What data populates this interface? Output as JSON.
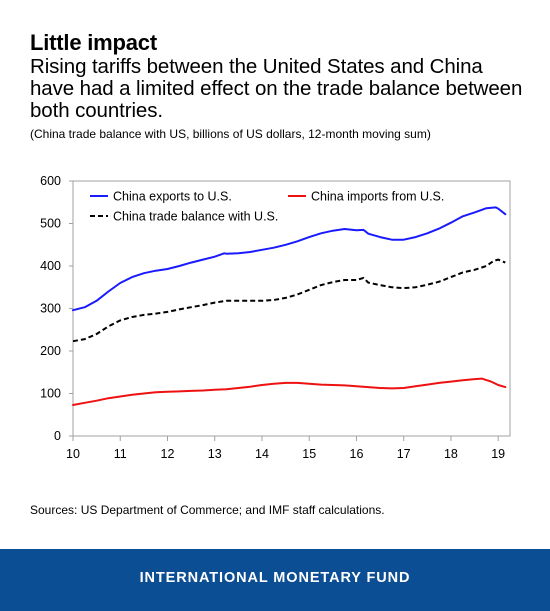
{
  "header": {
    "title": "Little impact",
    "subtitle": "Rising tariffs between the United States and China have had a limited effect on the trade balance between both countries.",
    "note": "(China trade balance with US, billions of US dollars, 12-month moving sum)"
  },
  "source": "Sources: US Department of Commerce; and IMF staff calculations.",
  "footer": {
    "org": "INTERNATIONAL MONETARY FUND",
    "color": "#0c4e94"
  },
  "chart_data": {
    "type": "line",
    "xlim": [
      10,
      19.25
    ],
    "ylim": [
      0,
      600
    ],
    "x_ticks": [
      "10",
      "11",
      "12",
      "13",
      "14",
      "15",
      "16",
      "17",
      "18",
      "19"
    ],
    "y_ticks": [
      "0",
      "100",
      "200",
      "300",
      "400",
      "500",
      "600"
    ],
    "grid": false,
    "legend_position": "top-left",
    "series": [
      {
        "name": "China exports to U.S.",
        "color": "#1a1aff",
        "dash": "solid",
        "points": [
          [
            10.0,
            296
          ],
          [
            10.25,
            303
          ],
          [
            10.5,
            318
          ],
          [
            10.75,
            340
          ],
          [
            11.0,
            360
          ],
          [
            11.25,
            374
          ],
          [
            11.5,
            383
          ],
          [
            11.75,
            389
          ],
          [
            12.0,
            393
          ],
          [
            12.25,
            400
          ],
          [
            12.5,
            408
          ],
          [
            12.75,
            415
          ],
          [
            13.0,
            422
          ],
          [
            13.2,
            430
          ],
          [
            13.25,
            429
          ],
          [
            13.5,
            430
          ],
          [
            13.75,
            433
          ],
          [
            14.0,
            438
          ],
          [
            14.25,
            443
          ],
          [
            14.5,
            450
          ],
          [
            14.75,
            458
          ],
          [
            15.0,
            468
          ],
          [
            15.25,
            477
          ],
          [
            15.5,
            483
          ],
          [
            15.75,
            487
          ],
          [
            16.0,
            484
          ],
          [
            16.15,
            485
          ],
          [
            16.25,
            476
          ],
          [
            16.5,
            468
          ],
          [
            16.75,
            462
          ],
          [
            17.0,
            462
          ],
          [
            17.25,
            468
          ],
          [
            17.5,
            477
          ],
          [
            17.75,
            488
          ],
          [
            18.0,
            502
          ],
          [
            18.25,
            517
          ],
          [
            18.5,
            526
          ],
          [
            18.75,
            536
          ],
          [
            18.95,
            538
          ],
          [
            19.0,
            535
          ],
          [
            19.15,
            522
          ]
        ]
      },
      {
        "name": "China imports from U.S.",
        "color": "#ee1111",
        "dash": "solid",
        "points": [
          [
            10.0,
            73
          ],
          [
            10.25,
            78
          ],
          [
            10.5,
            83
          ],
          [
            10.75,
            89
          ],
          [
            11.0,
            93
          ],
          [
            11.25,
            97
          ],
          [
            11.5,
            100
          ],
          [
            11.75,
            103
          ],
          [
            12.0,
            104
          ],
          [
            12.25,
            105
          ],
          [
            12.5,
            106
          ],
          [
            12.75,
            107
          ],
          [
            13.0,
            109
          ],
          [
            13.25,
            110
          ],
          [
            13.5,
            113
          ],
          [
            13.75,
            116
          ],
          [
            14.0,
            120
          ],
          [
            14.25,
            123
          ],
          [
            14.5,
            125
          ],
          [
            14.75,
            125
          ],
          [
            15.0,
            123
          ],
          [
            15.25,
            121
          ],
          [
            15.5,
            120
          ],
          [
            15.75,
            119
          ],
          [
            16.0,
            117
          ],
          [
            16.25,
            115
          ],
          [
            16.5,
            113
          ],
          [
            16.75,
            112
          ],
          [
            17.0,
            113
          ],
          [
            17.25,
            117
          ],
          [
            17.5,
            121
          ],
          [
            17.75,
            125
          ],
          [
            18.0,
            128
          ],
          [
            18.25,
            131
          ],
          [
            18.5,
            134
          ],
          [
            18.65,
            135
          ],
          [
            18.85,
            128
          ],
          [
            19.0,
            120
          ],
          [
            19.15,
            115
          ]
        ]
      },
      {
        "name": "China trade balance with U.S.",
        "color": "#000000",
        "dash": "dashed",
        "points": [
          [
            10.0,
            223
          ],
          [
            10.25,
            228
          ],
          [
            10.5,
            240
          ],
          [
            10.75,
            258
          ],
          [
            11.0,
            272
          ],
          [
            11.25,
            280
          ],
          [
            11.5,
            285
          ],
          [
            11.75,
            288
          ],
          [
            12.0,
            292
          ],
          [
            12.25,
            298
          ],
          [
            12.5,
            303
          ],
          [
            12.75,
            308
          ],
          [
            13.0,
            314
          ],
          [
            13.25,
            318
          ],
          [
            13.5,
            318
          ],
          [
            13.75,
            318
          ],
          [
            14.0,
            318
          ],
          [
            14.25,
            320
          ],
          [
            14.5,
            325
          ],
          [
            14.75,
            333
          ],
          [
            15.0,
            344
          ],
          [
            15.25,
            355
          ],
          [
            15.5,
            362
          ],
          [
            15.75,
            367
          ],
          [
            16.0,
            367
          ],
          [
            16.15,
            372
          ],
          [
            16.25,
            361
          ],
          [
            16.5,
            355
          ],
          [
            16.75,
            350
          ],
          [
            17.0,
            348
          ],
          [
            17.25,
            350
          ],
          [
            17.5,
            356
          ],
          [
            17.75,
            363
          ],
          [
            18.0,
            374
          ],
          [
            18.25,
            385
          ],
          [
            18.5,
            391
          ],
          [
            18.75,
            400
          ],
          [
            18.9,
            412
          ],
          [
            19.0,
            415
          ],
          [
            19.15,
            408
          ]
        ]
      }
    ]
  }
}
